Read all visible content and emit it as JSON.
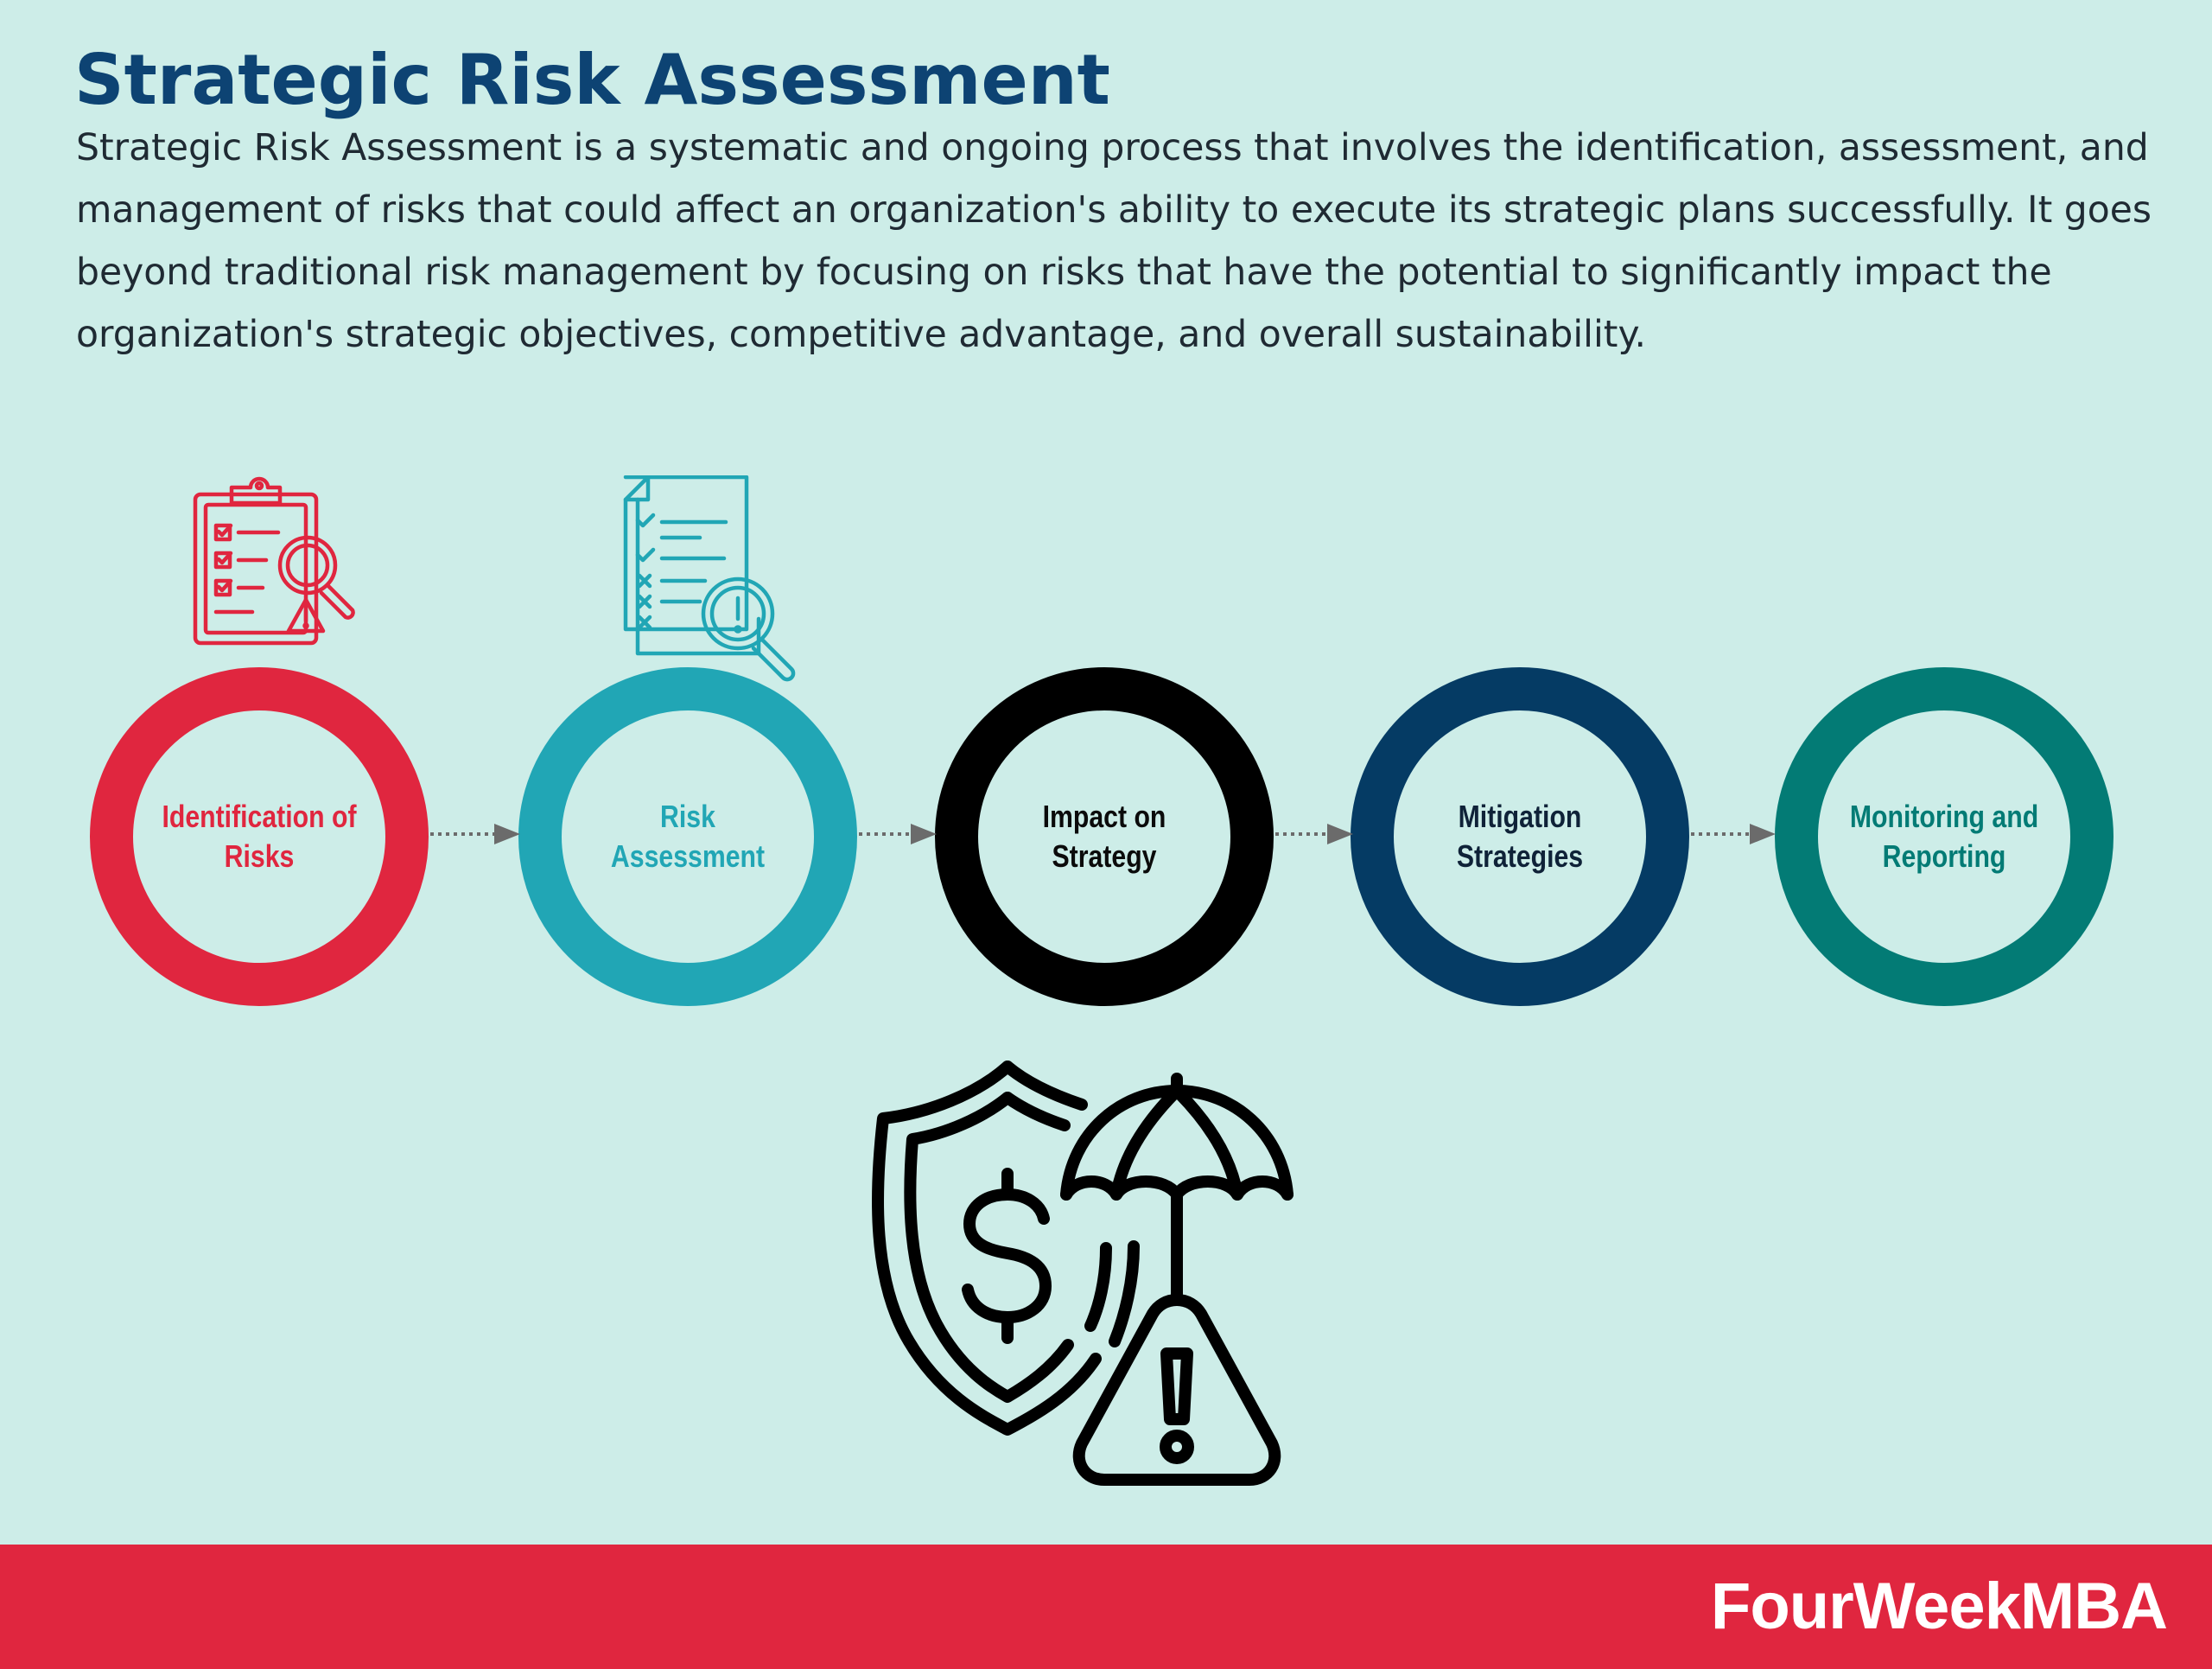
{
  "header": {
    "title": "Strategic Risk Assessment",
    "description": "Strategic Risk Assessment is a systematic and ongoing process that involves the identification, assessment, and management of risks that could affect an organization's ability to execute its strategic plans successfully. It goes beyond traditional risk management by focusing on risks that have the potential to significantly impact the organization's strategic objectives, competitive advantage, and overall sustainability."
  },
  "process": {
    "steps": [
      {
        "label": "Identification of Risks",
        "color": "#e0263f",
        "text_color": "#e0263f"
      },
      {
        "label": "Risk Assessment",
        "color": "#21a6b5",
        "text_color": "#21a6b5"
      },
      {
        "label": "Impact on Strategy",
        "color": "#000000",
        "text_color": "#0b0b0b"
      },
      {
        "label": "Mitigation Strategies",
        "color": "#053b64",
        "text_color": "#0f2238"
      },
      {
        "label": "Monitoring and Reporting",
        "color": "#037b75",
        "text_color": "#037b75"
      }
    ],
    "connector_icon": "dotted-arrow-icon"
  },
  "icons": {
    "step1": "clipboard-checklist-magnifier-icon",
    "step2": "document-checklist-alert-magnifier-icon",
    "main": "shield-dollar-umbrella-warning-icon"
  },
  "footer": {
    "brand": "FourWeekMBA",
    "color": "#e0263f"
  }
}
